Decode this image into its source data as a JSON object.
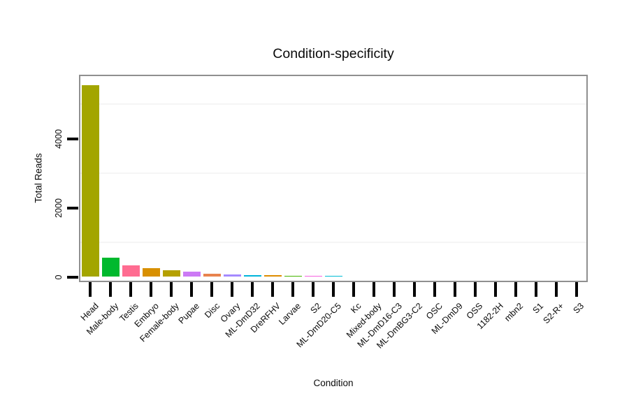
{
  "chart_data": {
    "type": "bar",
    "title": "Condition-specificity",
    "xlabel": "Condition",
    "ylabel": "Total Reads",
    "ytick_labels": [
      "0",
      "2000",
      "4000"
    ],
    "ytick_values": [
      0,
      2000,
      4000
    ],
    "minor_grid_values": [
      1000,
      3000,
      5000
    ],
    "ylim": [
      0,
      5810
    ],
    "legend_position": "none",
    "grid": "minor-only",
    "categories": [
      "Head",
      "Male-body",
      "Testis",
      "Embryo",
      "Female-body",
      "Pupae",
      "Disc",
      "Ovary",
      "ML-DmD32",
      "DreRFHV",
      "Larvae",
      "S2",
      "ML-DmD20-C5",
      "Kc",
      "Mixed-body",
      "ML-DmD16-C3",
      "ML-DmBG3-C2",
      "OSC",
      "ML-DmD9",
      "OSS",
      "1182-2H",
      "mbn2",
      "S1",
      "S2-R+",
      "S3"
    ],
    "values": [
      5540,
      560,
      340,
      260,
      190,
      160,
      85,
      70,
      60,
      45,
      35,
      35,
      30,
      0,
      0,
      0,
      0,
      0,
      0,
      0,
      0,
      0,
      0,
      0,
      0
    ],
    "bar_colors": [
      "#a3a500",
      "#00b92e",
      "#ff6c91",
      "#d89000",
      "#b5a000",
      "#cc7af5",
      "#e8834e",
      "#a58aff",
      "#00b4da",
      "#de8c00",
      "#45b500",
      "#f763e0",
      "#00bcd4",
      null,
      null,
      null,
      null,
      null,
      null,
      null,
      null,
      null,
      null,
      null,
      null
    ]
  },
  "style_colors": {
    "panel_border": "#8f8f8f",
    "minor_gridline": "#f5f5f5",
    "tick_mark": "#000000",
    "text": "#0a0a0a",
    "background": "#ffffff"
  }
}
